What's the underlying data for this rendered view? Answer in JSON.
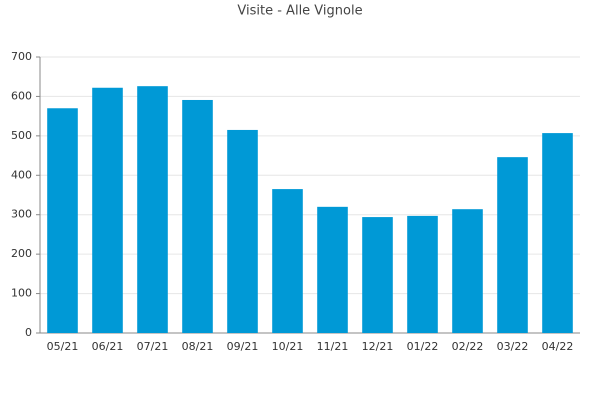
{
  "chart_data": {
    "type": "bar",
    "title": "Visite - Alle Vignole",
    "categories": [
      "05/21",
      "06/21",
      "07/21",
      "08/21",
      "09/21",
      "10/21",
      "11/21",
      "12/21",
      "01/22",
      "02/22",
      "03/22",
      "04/22"
    ],
    "values": [
      570,
      622,
      626,
      591,
      515,
      365,
      320,
      294,
      297,
      314,
      446,
      507
    ],
    "color": "#0099d6",
    "ylim": [
      0,
      700
    ],
    "yticks": [
      0,
      100,
      200,
      300,
      400,
      500,
      600,
      700
    ],
    "grid": true
  }
}
